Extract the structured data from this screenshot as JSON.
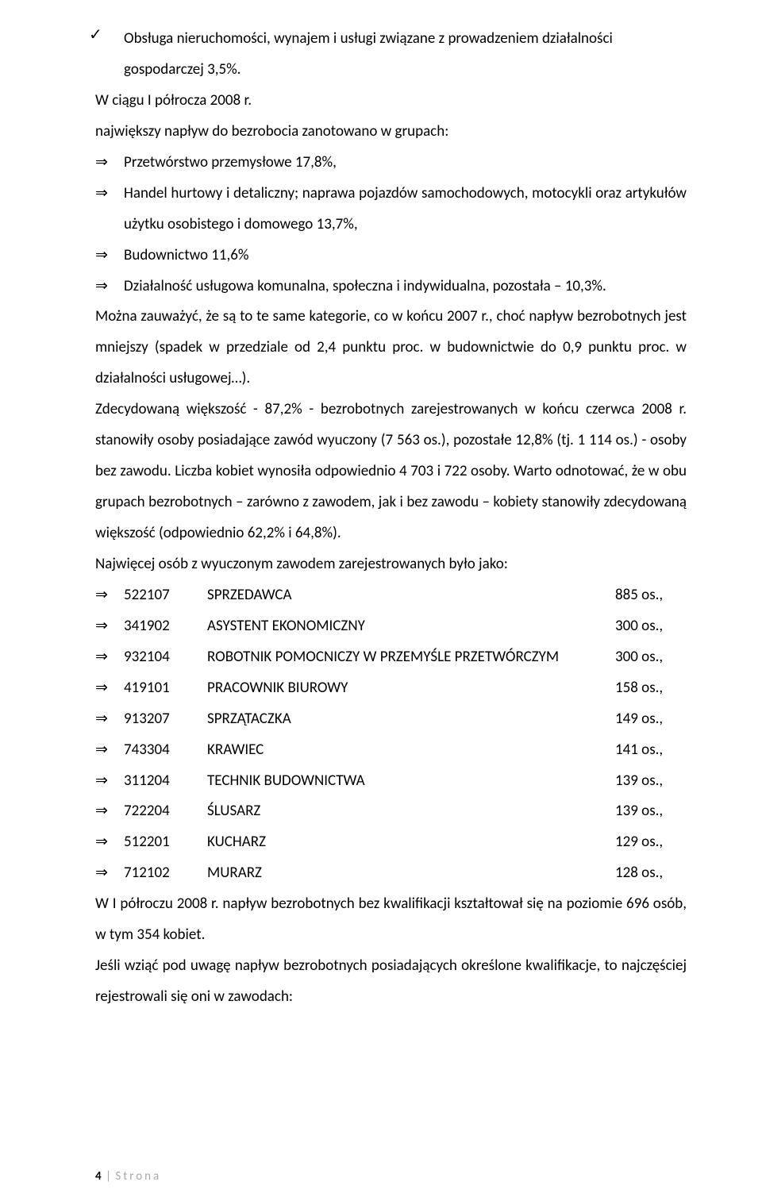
{
  "text": {
    "check_line_1": "Obsługa nieruchomości, wynajem i usługi związane z prowadzeniem działalności",
    "check_line_2": "gospodarczej 3,5%.",
    "p_w_ciagu": "W ciągu I półrocza 2008 r.",
    "p_najwiekszy": "największy napływ do bezrobocia zanotowano w grupach:",
    "bullet_1": "Przetwórstwo przemysłowe 17,8%,",
    "bullet_2": "Handel hurtowy i detaliczny; naprawa pojazdów samochodowych, motocykli oraz artykułów użytku osobistego i domowego 13,7%,",
    "bullet_3": "Budownictwo 11,6%",
    "bullet_4": "Działalność usługowa komunalna, społeczna i indywidualna, pozostała – 10,3%.",
    "long_para": "Można zauważyć, że są to te same kategorie, co w końcu 2007 r., choć napływ bezrobotnych jest mniejszy (spadek w przedziale od 2,4 punktu proc. w budownictwie do 0,9 punktu proc. w działalności usługowej…).\nZdecydowaną większość - 87,2% - bezrobotnych zarejestrowanych w końcu czerwca 2008 r. stanowiły osoby posiadające zawód wyuczony (7 563 os.), pozostałe 12,8% (tj. 1 114 os.) - osoby bez zawodu. Liczba kobiet wynosiła odpowiednio 4 703 i 722 osoby. Warto odnotować, że w obu grupach bezrobotnych – zarówno z zawodem, jak i bez zawodu – kobiety stanowiły zdecydowaną większość (odpowiednio 62,2% i 64,8%).",
    "p_najwiecej": "Najwięcej osób z wyuczonym zawodem zarejestrowanych było jako:",
    "occupations": [
      {
        "code": "522107",
        "name": "SPRZEDAWCA",
        "count": "885 os.,"
      },
      {
        "code": "341902",
        "name": "ASYSTENT EKONOMICZNY",
        "count": "300 os.,"
      },
      {
        "code": "932104",
        "name": "ROBOTNIK POMOCNICZY W PRZEMYŚLE PRZETWÓRCZYM",
        "count": "300 os.,"
      },
      {
        "code": "419101",
        "name": "PRACOWNIK BIUROWY",
        "count": "158 os.,"
      },
      {
        "code": "913207",
        "name": "SPRZĄTACZKA",
        "count": "149 os.,"
      },
      {
        "code": "743304",
        "name": "KRAWIEC",
        "count": "141 os.,"
      },
      {
        "code": "311204",
        "name": "TECHNIK BUDOWNICTWA",
        "count": "139 os.,"
      },
      {
        "code": "722204",
        "name": "ŚLUSARZ",
        "count": "139 os.,"
      },
      {
        "code": "512201",
        "name": "KUCHARZ",
        "count": "129 os.,"
      },
      {
        "code": "712102",
        "name": "MURARZ",
        "count": "128 os.,"
      }
    ],
    "p_w1": "W I półroczu 2008 r. napływ bezrobotnych bez kwalifikacji kształtował się na poziomie 696 osób, w tym 354 kobiet.",
    "p_jesli": "Jeśli wziąć pod uwagę napływ bezrobotnych posiadających określone kwalifikacje, to najczęściej rejestrowali się oni w zawodach:",
    "footer_page": "4",
    "footer_label": "Strona"
  }
}
